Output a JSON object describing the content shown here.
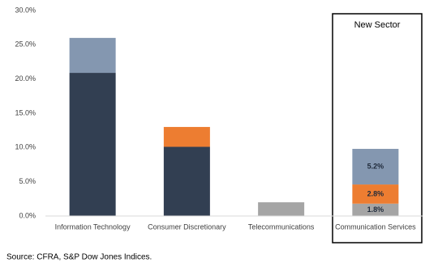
{
  "chart_data": {
    "type": "stacked_bar",
    "categories": [
      "Information Technology",
      "Consumer Discretionary",
      "Telecommunications",
      "Communication Services"
    ],
    "series": [
      {
        "color": "#323f52",
        "values": [
          20.9,
          10.1,
          null,
          null
        ]
      },
      {
        "color": "#a5a5a5",
        "values": [
          null,
          null,
          2.0,
          1.8
        ],
        "value_labels": [
          null,
          null,
          null,
          "1.8%"
        ]
      },
      {
        "color": "#ed7d31",
        "values": [
          null,
          2.9,
          null,
          2.8
        ],
        "value_labels": [
          null,
          null,
          null,
          "2.8%"
        ]
      },
      {
        "color": "#8497b0",
        "values": [
          5.1,
          null,
          null,
          5.2
        ],
        "value_labels": [
          null,
          null,
          null,
          "5.2%"
        ]
      }
    ],
    "ylim": [
      0,
      30
    ],
    "yticks": [
      {
        "value": 0,
        "label": "0.0%"
      },
      {
        "value": 5,
        "label": "5.0%"
      },
      {
        "value": 10,
        "label": "10.0%"
      },
      {
        "value": 15,
        "label": "15.0%"
      },
      {
        "value": 20,
        "label": "20.0%"
      },
      {
        "value": 25,
        "label": "25.0%"
      },
      {
        "value": 30,
        "label": "30.0%"
      }
    ],
    "grid": false,
    "annotation": "New Sector",
    "source": "Source: CFRA, S&P Dow Jones Indices."
  }
}
